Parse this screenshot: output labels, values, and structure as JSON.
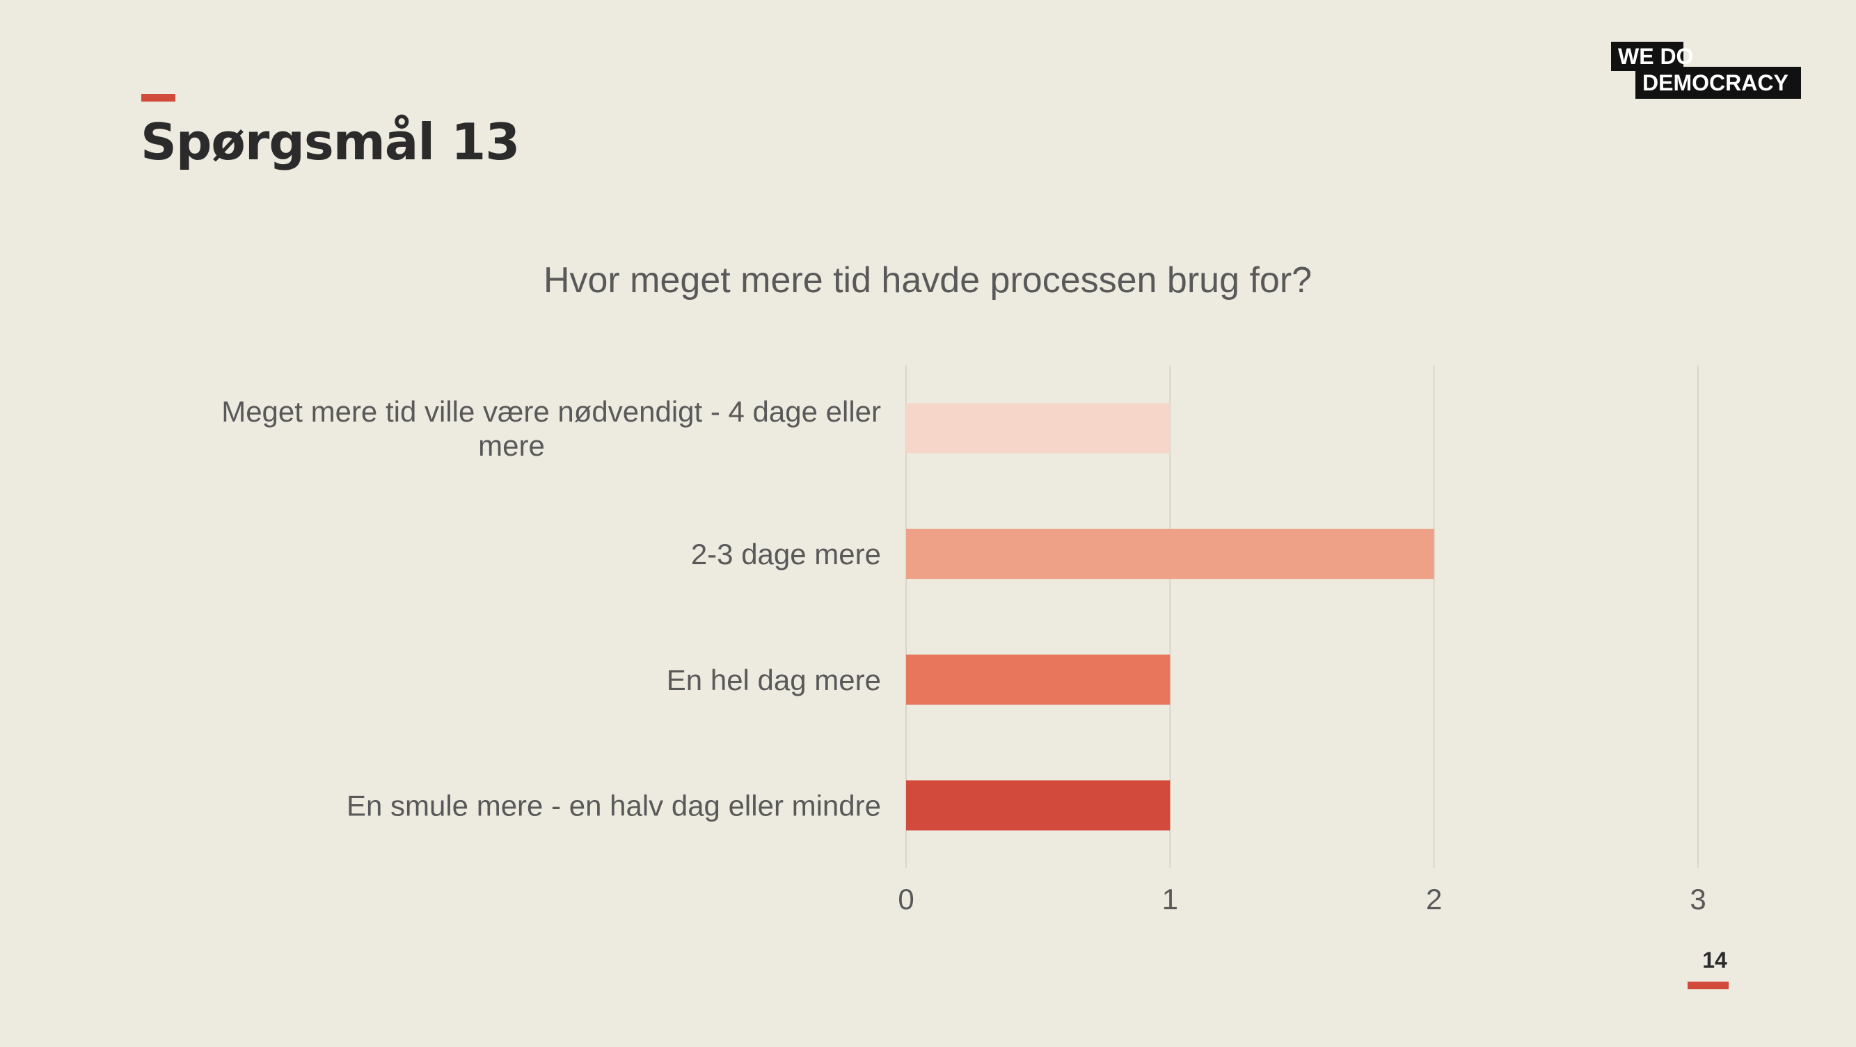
{
  "slide": {
    "title": "Spørgsmål 13",
    "page_number": "14",
    "logo_line1": "WE  DO",
    "logo_line2": "DEMOCRACY"
  },
  "colors": {
    "background": "#edeadf",
    "accent": "#d24a3c",
    "gridline": "#d9d5cb"
  },
  "chart_data": {
    "type": "bar",
    "orientation": "horizontal",
    "title": "Hvor meget mere tid havde processen brug for?",
    "categories": [
      "Meget mere tid ville være nødvendigt - 4 dage eller mere",
      "2-3 dage mere",
      "En hel dag mere",
      "En smule mere - en halv dag eller mindre"
    ],
    "category_label_lines": [
      [
        "Meget mere tid ville være nødvendigt - 4 dage eller",
        "mere"
      ],
      [
        "2-3 dage mere"
      ],
      [
        "En hel dag mere"
      ],
      [
        "En smule mere - en halv dag eller mindre"
      ]
    ],
    "values": [
      1,
      2,
      1,
      1
    ],
    "bar_colors": [
      "#f6d6c9",
      "#eea187",
      "#e8765d",
      "#d24a3c"
    ],
    "xlim": [
      0,
      3
    ],
    "xticks": [
      0,
      1,
      2,
      3
    ],
    "grid": true,
    "legend": "none",
    "xlabel": "",
    "ylabel": ""
  }
}
